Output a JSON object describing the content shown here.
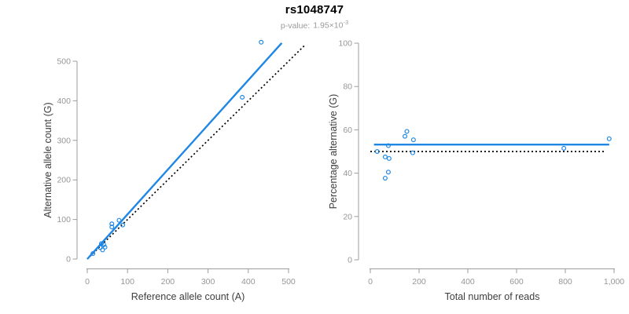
{
  "header": {
    "title": "rs1048747",
    "p_value_label": "p-value:",
    "p_value_base": "1.95×10",
    "p_value_exponent": "-3"
  },
  "colors": {
    "accent": "#1E87E5",
    "identity": "#000000",
    "axis": "#9c9c9c",
    "tick_text": "#969696",
    "label_text": "#3d3d3d",
    "subtitle_text": "#9a9a9a",
    "title_text": "#000000"
  },
  "chart_data": [
    {
      "type": "scatter",
      "panel": "left",
      "xlabel": "Reference allele count (A)",
      "ylabel": "Alternative allele count (G)",
      "xlim": [
        0,
        500
      ],
      "ylim": [
        0,
        500
      ],
      "grid": false,
      "legend": "none",
      "marker": "open-circle",
      "xticks": {
        "values": [
          0,
          100,
          200,
          300,
          400,
          500
        ],
        "labels": [
          "0",
          "100",
          "200",
          "300",
          "400",
          "500"
        ]
      },
      "yticks": {
        "values": [
          0,
          100,
          200,
          300,
          400,
          500
        ],
        "labels": [
          "0",
          "100",
          "200",
          "300",
          "400",
          "500"
        ]
      },
      "points": [
        [
          14,
          14
        ],
        [
          32,
          29
        ],
        [
          38,
          23
        ],
        [
          44,
          30
        ],
        [
          35,
          39
        ],
        [
          41,
          36
        ],
        [
          61,
          81
        ],
        [
          61,
          89
        ],
        [
          79,
          98
        ],
        [
          88,
          86
        ],
        [
          385,
          409
        ],
        [
          432,
          548
        ]
      ],
      "lines": [
        {
          "name": "identity-line",
          "style": "dotted",
          "color_key": "identity",
          "x1": 0,
          "y1": 0,
          "x2": 540,
          "y2": 540
        },
        {
          "name": "regression-line",
          "style": "solid",
          "color_key": "accent",
          "x1": 0,
          "y1": 0,
          "x2": 483,
          "y2": 546
        }
      ]
    },
    {
      "type": "scatter",
      "panel": "right",
      "xlabel": "Total number of reads",
      "ylabel": "Percentage alternative (G)",
      "xlim": [
        0,
        1000
      ],
      "ylim": [
        0,
        100
      ],
      "grid": false,
      "legend": "none",
      "marker": "open-circle",
      "xticks": {
        "values": [
          0,
          200,
          400,
          600,
          800,
          1000
        ],
        "labels": [
          "0",
          "200",
          "400",
          "600",
          "800",
          "1,000"
        ]
      },
      "yticks": {
        "values": [
          0,
          20,
          40,
          60,
          80,
          100
        ],
        "labels": [
          "0",
          "20",
          "40",
          "60",
          "80",
          "100"
        ]
      },
      "points": [
        [
          28,
          50.0
        ],
        [
          61,
          37.7
        ],
        [
          61,
          47.5
        ],
        [
          74,
          40.5
        ],
        [
          74,
          52.7
        ],
        [
          77,
          46.8
        ],
        [
          142,
          57.0
        ],
        [
          150,
          59.3
        ],
        [
          174,
          49.4
        ],
        [
          177,
          55.4
        ],
        [
          794,
          51.5
        ],
        [
          980,
          55.9
        ]
      ],
      "lines": [
        {
          "name": "fifty-percent-line",
          "style": "dotted",
          "color_key": "identity",
          "x1": 0,
          "y1": 50,
          "x2": 960,
          "y2": 50
        },
        {
          "name": "mean-percentage-line",
          "style": "solid",
          "color_key": "accent",
          "x1": 15,
          "y1": 53.2,
          "x2": 980,
          "y2": 53.2
        }
      ]
    }
  ]
}
